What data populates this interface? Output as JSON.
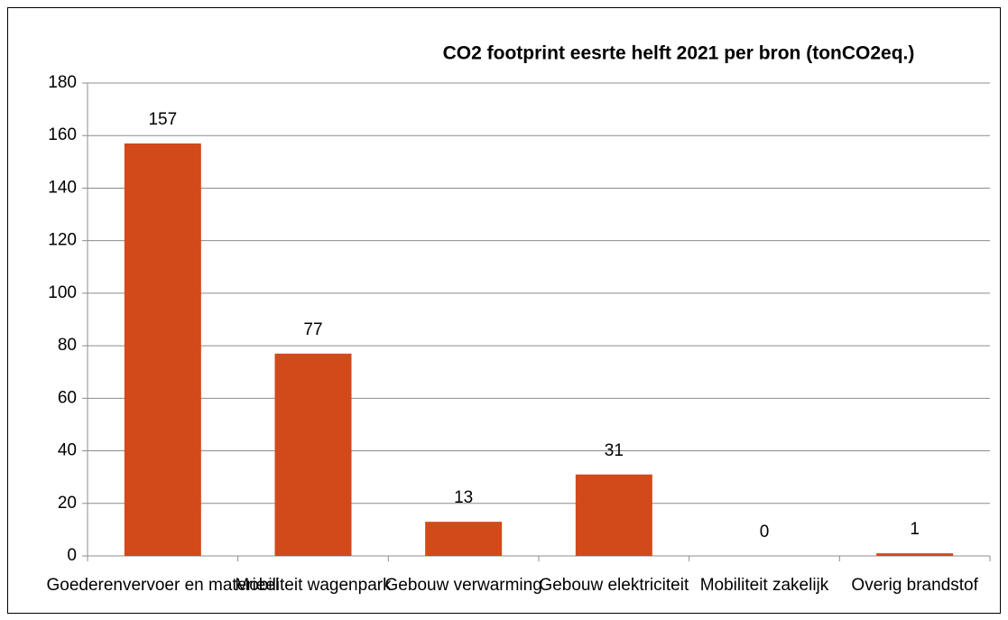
{
  "chart_data": {
    "type": "bar",
    "title": "CO2 footprint eesrte helft 2021 per bron (tonCO2eq.)",
    "categories": [
      "Goederenvervoer en materieel",
      "Mobiliteit wagenpark",
      "Gebouw verwarming",
      "Gebouw elektriciteit",
      "Mobiliteit zakelijk",
      "Overig brandstof"
    ],
    "values": [
      157,
      77,
      13,
      31,
      0,
      1
    ],
    "color": "#d24a1a",
    "ylim": [
      0,
      180
    ],
    "yticks": [
      0,
      20,
      40,
      60,
      80,
      100,
      120,
      140,
      160,
      180
    ],
    "grid": true
  }
}
